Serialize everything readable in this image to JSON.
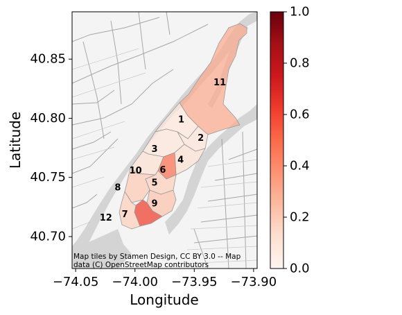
{
  "chart_data": {
    "type": "choropleth",
    "xlabel": "Longitude",
    "ylabel": "Latitude",
    "xlim": [
      -74.053,
      -73.897
    ],
    "ylim": [
      40.673,
      40.89
    ],
    "xticks": [
      -74.05,
      -74.0,
      -73.95,
      -73.9
    ],
    "xtick_labels": [
      "−74.05",
      "−74.00",
      "−73.95",
      "−73.90"
    ],
    "yticks": [
      40.7,
      40.75,
      40.8,
      40.85
    ],
    "ytick_labels": [
      "40.70",
      "40.75",
      "40.80",
      "40.85"
    ],
    "colormap": "Reds",
    "colorbar": {
      "range": [
        0.0,
        1.0
      ],
      "ticks": [
        0.0,
        0.2,
        0.4,
        0.6,
        0.8,
        1.0
      ],
      "tick_labels": [
        "0.0",
        "0.2",
        "0.4",
        "0.6",
        "0.8",
        "1.0"
      ]
    },
    "regions": [
      {
        "label": "1",
        "value": 0.08,
        "lon": -73.961,
        "lat": 40.7985
      },
      {
        "label": "2",
        "value": 0.1,
        "lon": -73.9445,
        "lat": 40.783
      },
      {
        "label": "3",
        "value": 0.09,
        "lon": -73.9835,
        "lat": 40.7735
      },
      {
        "label": "4",
        "value": 0.12,
        "lon": -73.9615,
        "lat": 40.7645
      },
      {
        "label": "5",
        "value": 0.18,
        "lon": -73.9835,
        "lat": 40.745
      },
      {
        "label": "6",
        "value": 0.48,
        "lon": -73.9765,
        "lat": 40.756
      },
      {
        "label": "7",
        "value": 0.62,
        "lon": -74.0085,
        "lat": 40.7185
      },
      {
        "label": "8",
        "value": 0.2,
        "lon": -74.0145,
        "lat": 40.741
      },
      {
        "label": "9",
        "value": 0.22,
        "lon": -73.9835,
        "lat": 40.7275
      },
      {
        "label": "10",
        "value": 0.12,
        "lon": -73.9995,
        "lat": 40.7555
      },
      {
        "label": "11",
        "value": 0.3,
        "lon": -73.9285,
        "lat": 40.83
      },
      {
        "label": "12",
        "value": 0.18,
        "lon": -74.0245,
        "lat": 40.7155
      }
    ],
    "attribution": [
      "Map tiles by Stamen Design, CC BY 3.0 -- Map",
      "data (C) OpenStreetMap contributors"
    ]
  },
  "colors": {
    "water": "#d4d4d4",
    "land": "#f4f4f4",
    "road": "#8c8c8c",
    "border": "#999999"
  }
}
